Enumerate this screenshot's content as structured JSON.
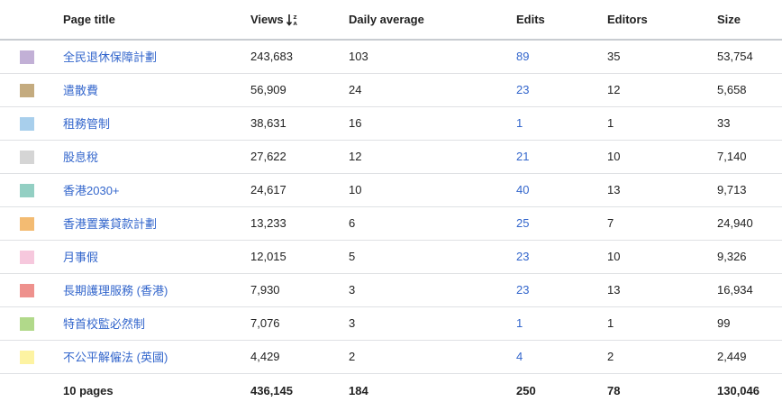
{
  "columns": {
    "title": "Page title",
    "views": "Views",
    "daily": "Daily average",
    "edits": "Edits",
    "editors": "Editors",
    "size": "Size"
  },
  "rows": [
    {
      "color": "#c2b0d6",
      "title": "全民退休保障計劃",
      "views": "243,683",
      "daily": "103",
      "edits": "89",
      "editors": "35",
      "size": "53,754"
    },
    {
      "color": "#c4ab7f",
      "title": "遣散費",
      "views": "56,909",
      "daily": "24",
      "edits": "23",
      "editors": "12",
      "size": "5,658"
    },
    {
      "color": "#a8cfec",
      "title": "租務管制",
      "views": "38,631",
      "daily": "16",
      "edits": "1",
      "editors": "1",
      "size": "33"
    },
    {
      "color": "#d5d5d5",
      "title": "股息稅",
      "views": "27,622",
      "daily": "12",
      "edits": "21",
      "editors": "10",
      "size": "7,140"
    },
    {
      "color": "#93cfc3",
      "title": "香港2030+",
      "views": "24,617",
      "daily": "10",
      "edits": "40",
      "editors": "13",
      "size": "9,713"
    },
    {
      "color": "#f3bb72",
      "title": "香港置業貸款計劃",
      "views": "13,233",
      "daily": "6",
      "edits": "25",
      "editors": "7",
      "size": "24,940"
    },
    {
      "color": "#f6c8dd",
      "title": "月事假",
      "views": "12,015",
      "daily": "5",
      "edits": "23",
      "editors": "10",
      "size": "9,326"
    },
    {
      "color": "#ee918d",
      "title": "長期護理服務 (香港)",
      "views": "7,930",
      "daily": "3",
      "edits": "23",
      "editors": "13",
      "size": "16,934"
    },
    {
      "color": "#b1d98a",
      "title": "特首校監必然制",
      "views": "7,076",
      "daily": "3",
      "edits": "1",
      "editors": "1",
      "size": "99"
    },
    {
      "color": "#fdf3a2",
      "title": "不公平解僱法 (英國)",
      "views": "4,429",
      "daily": "2",
      "edits": "4",
      "editors": "2",
      "size": "2,449"
    }
  ],
  "totals": {
    "pages": "10 pages",
    "views": "436,145",
    "daily": "184",
    "edits": "250",
    "editors": "78",
    "size": "130,046"
  },
  "icons": {
    "sort": "sort-descending-icon"
  }
}
